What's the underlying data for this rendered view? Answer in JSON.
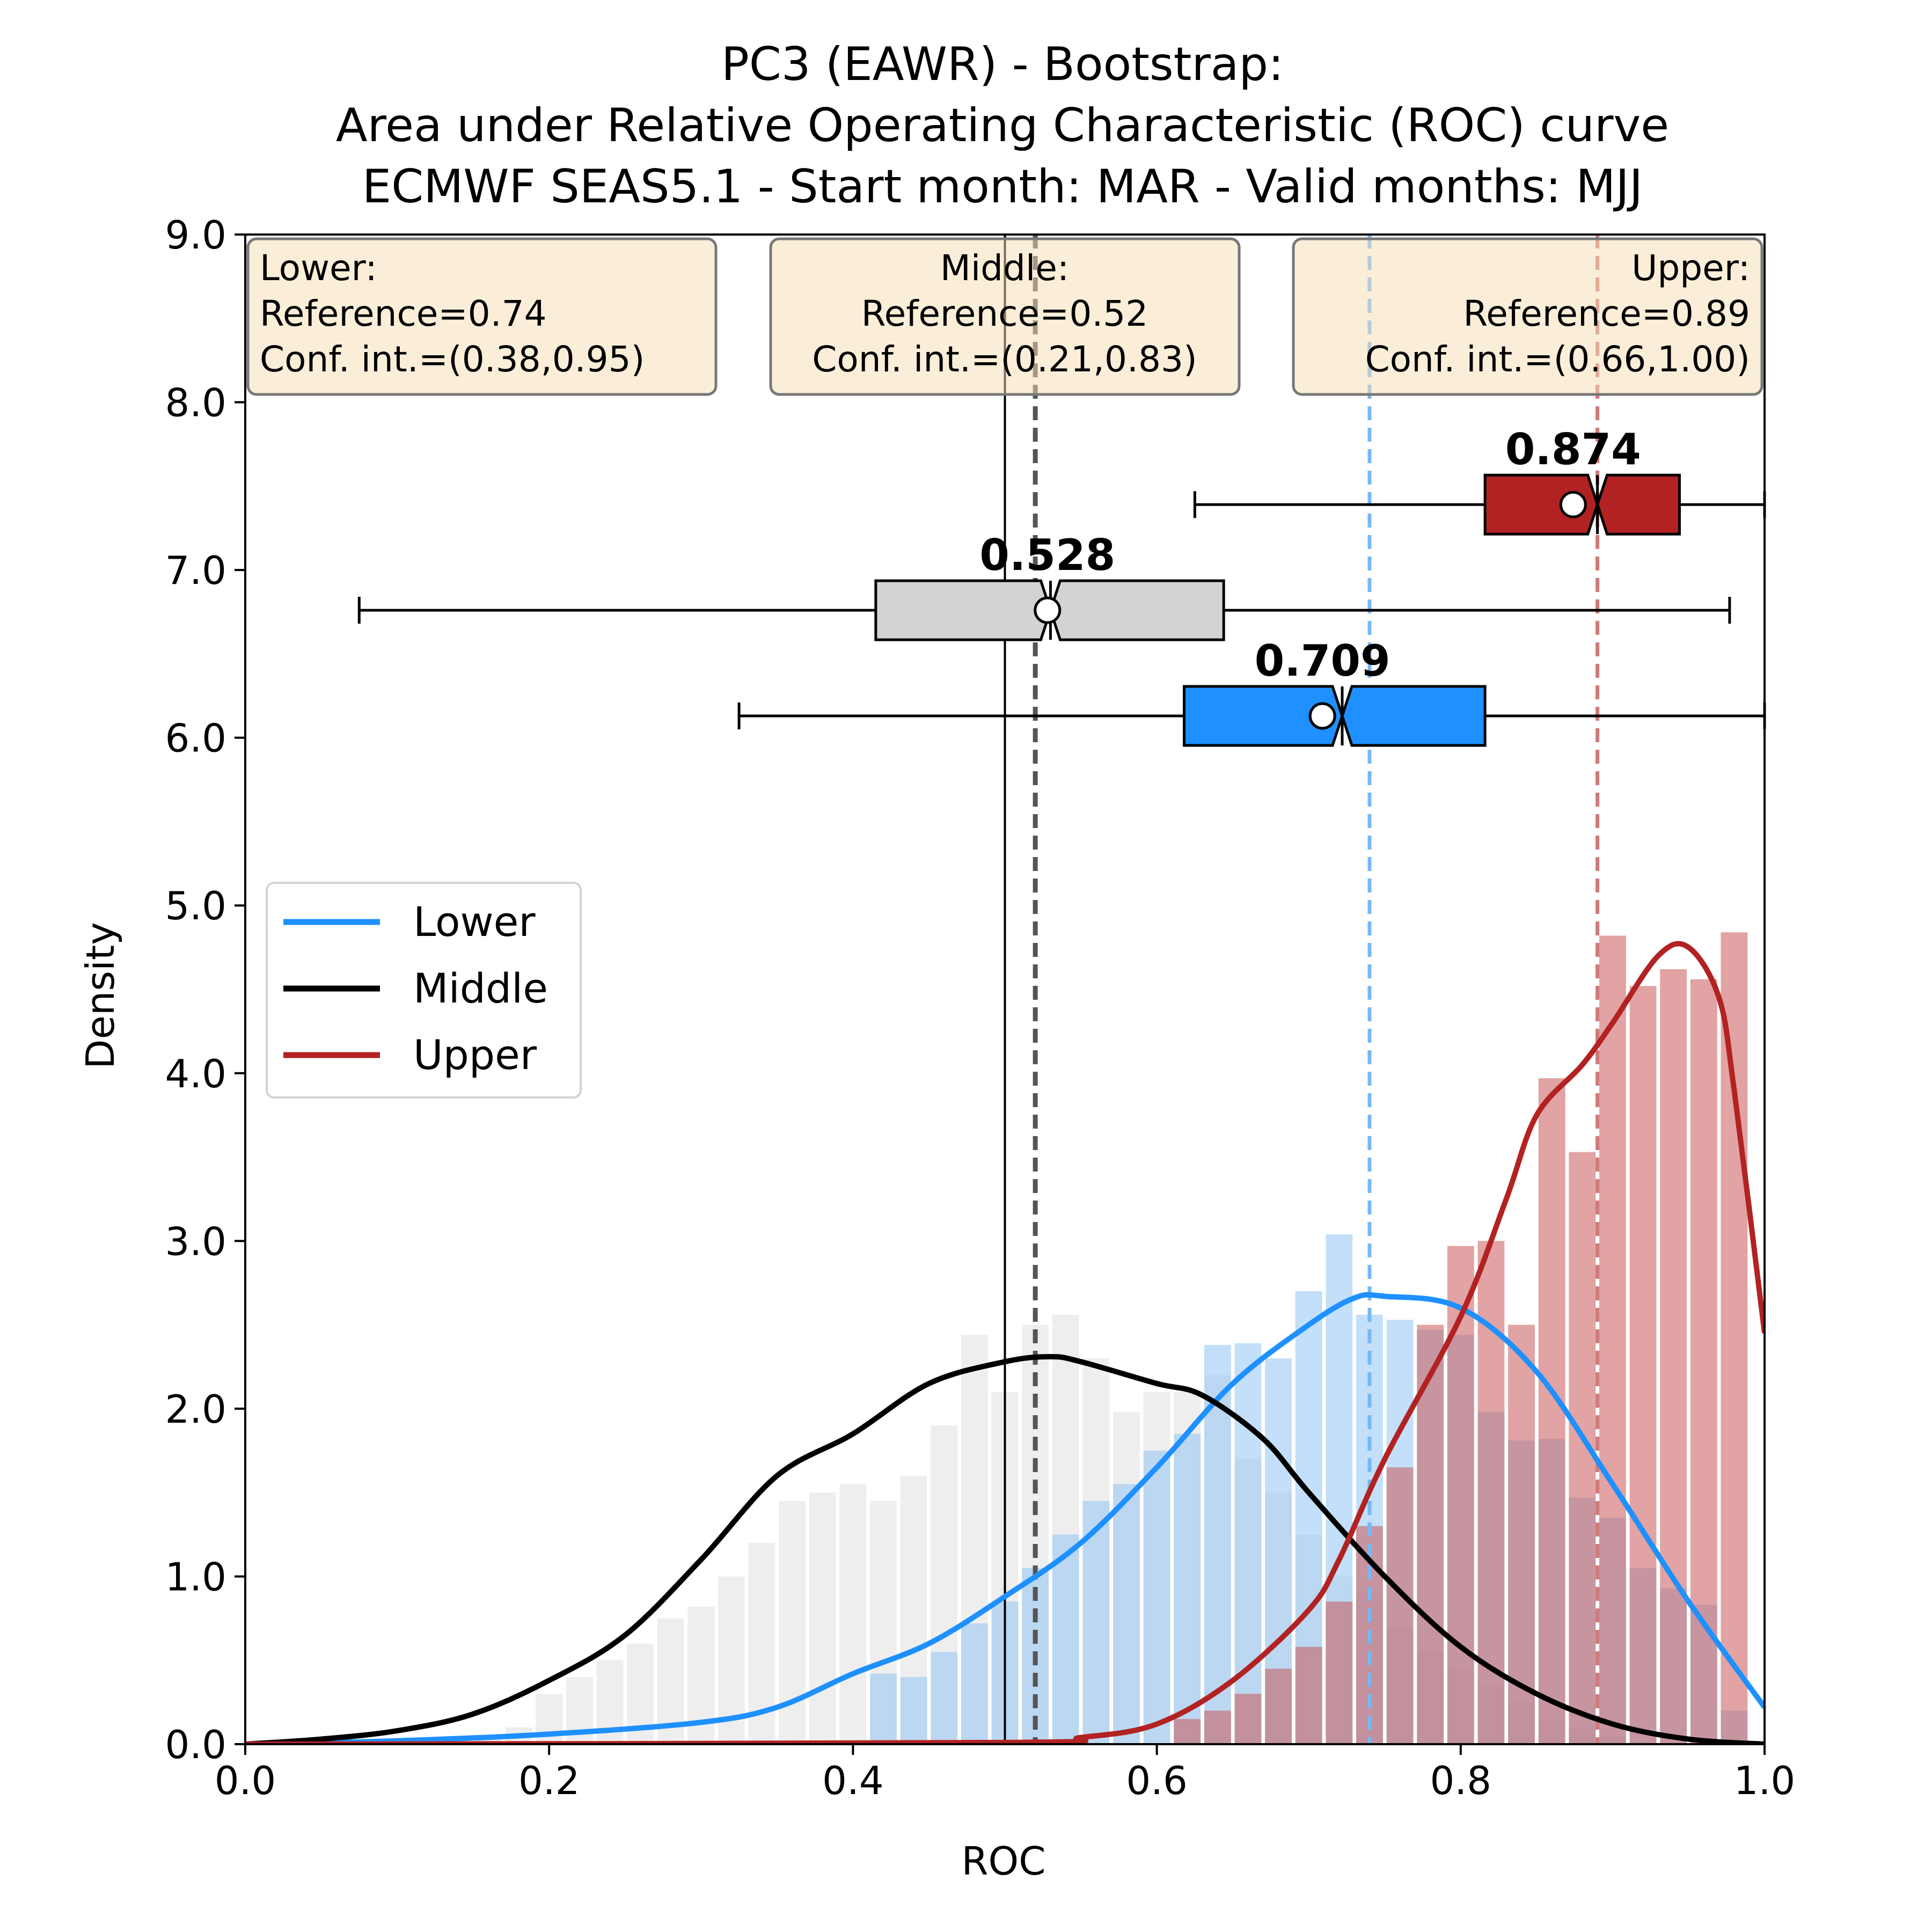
{
  "chart_data": {
    "type": "histogram",
    "title_lines": [
      "PC3 (EAWR) - Bootstrap:",
      "Area under Relative Operating Characteristic (ROC) curve",
      "ECMWF SEAS5.1 - Start month: MAR - Valid months: MJJ"
    ],
    "xlabel": "ROC",
    "ylabel": "Density",
    "xlim": [
      0.0,
      1.0
    ],
    "ylim": [
      0.0,
      9.0
    ],
    "x_ticks": [
      "0.0",
      "0.2",
      "0.4",
      "0.6",
      "0.8",
      "1.0"
    ],
    "y_ticks": [
      "0.0",
      "1.0",
      "2.0",
      "3.0",
      "4.0",
      "5.0",
      "6.0",
      "7.0",
      "8.0",
      "9.0"
    ],
    "legend": {
      "placement": "center-left",
      "entries": [
        "Lower",
        "Middle",
        "Upper"
      ]
    },
    "reference_line_x": 0.5,
    "info_boxes": [
      {
        "lines": [
          "Lower:",
          "Reference=0.74",
          "Conf. int.=(0.38,0.95)"
        ],
        "align": "left"
      },
      {
        "lines": [
          "Middle:",
          "Reference=0.52",
          "Conf. int.=(0.21,0.83)"
        ],
        "align": "center"
      },
      {
        "lines": [
          "Upper:",
          "Reference=0.89",
          "Conf. int.=(0.66,1.00)"
        ],
        "align": "right"
      }
    ],
    "series": [
      {
        "name": "Lower",
        "color": "#1e90ff",
        "bar_color": "#92c4f4",
        "reference": 0.74,
        "hist_x": [
          0.42,
          0.44,
          0.46,
          0.48,
          0.5,
          0.52,
          0.54,
          0.56,
          0.58,
          0.6,
          0.62,
          0.64,
          0.66,
          0.68,
          0.7,
          0.72,
          0.74,
          0.76,
          0.78,
          0.8,
          0.82,
          0.84,
          0.86,
          0.88,
          0.9,
          0.92,
          0.94,
          0.96,
          0.98
        ],
        "hist_y": [
          0.42,
          0.4,
          0.55,
          0.72,
          0.85,
          1.05,
          1.25,
          1.45,
          1.55,
          1.75,
          1.85,
          2.38,
          2.39,
          2.3,
          2.7,
          3.04,
          2.56,
          2.53,
          2.47,
          2.44,
          1.98,
          1.81,
          1.82,
          1.47,
          1.35,
          1.05,
          0.93,
          0.83,
          0.2
        ],
        "kde_x": [
          0.0,
          0.1,
          0.2,
          0.3,
          0.35,
          0.4,
          0.45,
          0.5,
          0.55,
          0.6,
          0.65,
          0.7,
          0.73,
          0.75,
          0.8,
          0.85,
          0.9,
          0.95,
          1.0
        ],
        "kde_y": [
          0.0,
          0.02,
          0.06,
          0.13,
          0.22,
          0.42,
          0.6,
          0.88,
          1.2,
          1.65,
          2.15,
          2.5,
          2.66,
          2.67,
          2.6,
          2.22,
          1.55,
          0.85,
          0.22
        ],
        "box": {
          "whislo": 0.325,
          "q1": 0.618,
          "med": 0.722,
          "q3": 0.816,
          "whishi": 1.0,
          "mean": 0.709,
          "y": 6.13
        },
        "mean_label": "0.709"
      },
      {
        "name": "Middle",
        "color": "#000000",
        "bar_color": "#dddddd",
        "reference": 0.52,
        "hist_x": [
          0.16,
          0.18,
          0.2,
          0.22,
          0.24,
          0.26,
          0.28,
          0.3,
          0.32,
          0.34,
          0.36,
          0.38,
          0.4,
          0.42,
          0.44,
          0.46,
          0.48,
          0.5,
          0.52,
          0.54,
          0.56,
          0.58,
          0.6,
          0.62,
          0.64,
          0.66,
          0.68,
          0.7,
          0.72,
          0.74,
          0.76,
          0.78,
          0.8,
          0.82,
          0.84,
          0.86,
          0.88,
          0.9
        ],
        "hist_y": [
          0.05,
          0.1,
          0.3,
          0.4,
          0.5,
          0.6,
          0.75,
          0.82,
          1.0,
          1.2,
          1.45,
          1.5,
          1.55,
          1.45,
          1.6,
          1.9,
          2.44,
          2.1,
          2.5,
          2.56,
          2.3,
          1.98,
          2.1,
          2.1,
          2.2,
          1.7,
          1.5,
          1.25,
          1.0,
          0.9,
          0.7,
          0.55,
          0.45,
          0.35,
          0.25,
          0.15,
          0.1,
          0.05
        ],
        "kde_x": [
          0.0,
          0.05,
          0.1,
          0.15,
          0.2,
          0.25,
          0.3,
          0.35,
          0.4,
          0.45,
          0.5,
          0.53,
          0.55,
          0.6,
          0.63,
          0.67,
          0.7,
          0.75,
          0.8,
          0.85,
          0.9,
          0.95,
          1.0
        ],
        "kde_y": [
          0.0,
          0.03,
          0.08,
          0.18,
          0.38,
          0.65,
          1.1,
          1.6,
          1.85,
          2.15,
          2.28,
          2.31,
          2.28,
          2.15,
          2.08,
          1.82,
          1.5,
          1.0,
          0.58,
          0.3,
          0.12,
          0.03,
          0.0
        ],
        "box": {
          "whislo": 0.075,
          "q1": 0.415,
          "med": 0.53,
          "q3": 0.644,
          "whishi": 0.977,
          "mean": 0.528,
          "y": 6.76
        },
        "mean_label": "0.528"
      },
      {
        "name": "Upper",
        "color": "#b22222",
        "bar_color": "#c85858",
        "reference": 0.89,
        "hist_x": [
          0.62,
          0.64,
          0.66,
          0.68,
          0.7,
          0.72,
          0.74,
          0.76,
          0.78,
          0.8,
          0.82,
          0.84,
          0.86,
          0.88,
          0.9,
          0.92,
          0.94,
          0.96,
          0.98
        ],
        "hist_y": [
          0.15,
          0.2,
          0.3,
          0.45,
          0.58,
          0.85,
          1.3,
          1.65,
          2.5,
          2.97,
          3.0,
          2.5,
          3.97,
          3.53,
          4.82,
          4.52,
          4.62,
          4.56,
          4.84
        ],
        "kde_x": [
          0.0,
          0.5,
          0.55,
          0.6,
          0.65,
          0.7,
          0.72,
          0.75,
          0.8,
          0.83,
          0.85,
          0.88,
          0.9,
          0.93,
          0.95,
          0.97,
          0.98,
          1.0
        ],
        "kde_y": [
          0.0,
          0.01,
          0.04,
          0.12,
          0.38,
          0.8,
          1.1,
          1.7,
          2.55,
          3.25,
          3.75,
          4.05,
          4.3,
          4.7,
          4.75,
          4.45,
          3.9,
          2.45
        ],
        "box": {
          "whislo": 0.625,
          "q1": 0.816,
          "med": 0.89,
          "q3": 0.944,
          "whishi": 1.0,
          "mean": 0.874,
          "y": 7.39
        },
        "mean_label": "0.874"
      }
    ]
  }
}
